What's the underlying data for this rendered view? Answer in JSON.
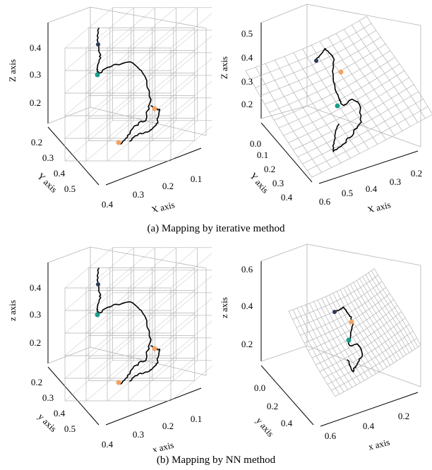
{
  "figure": {
    "caption_a": "(a) Mapping by iterative method",
    "caption_b": "(b) Mapping by NN method"
  },
  "panels": [
    {
      "id": "a-left",
      "zlabel": "Z axis",
      "ylabel": "Y axis",
      "xlabel": "X axis",
      "zticks": [
        "0.4",
        "0.3",
        "0.2"
      ],
      "yticks": [
        "0.2",
        "0.3",
        "0.4",
        "0.5"
      ],
      "xticks": [
        "0.4",
        "0.3",
        "0.2",
        "0.1"
      ],
      "grid_shape": "box",
      "colors": {
        "grid": "#b3b3b3",
        "trajectory": "#000000",
        "start": "#1a9e8a",
        "end": "#f4a261",
        "top": "#2b3a55"
      }
    },
    {
      "id": "a-right",
      "zlabel": "Z axis",
      "ylabel": "Y axis",
      "xlabel": "X axis",
      "zticks": [
        "0.5",
        "0.4",
        "0.3",
        "0.2"
      ],
      "yticks": [
        "0.0",
        "0.1",
        "0.2",
        "0.3",
        "0.4"
      ],
      "xticks": [
        "0.6",
        "0.5",
        "0.4",
        "0.3",
        "0.2"
      ],
      "grid_shape": "warped",
      "colors": {
        "grid": "#b3b3b3",
        "trajectory": "#000000",
        "start": "#1a9e8a",
        "end": "#f4a261",
        "top": "#2b3a55"
      }
    },
    {
      "id": "b-left",
      "zlabel": "z axis",
      "ylabel": "y axis",
      "xlabel": "x axis",
      "zticks": [
        "0.4",
        "0.3",
        "0.2"
      ],
      "yticks": [
        "0.2",
        "0.3",
        "0.4",
        "0.5"
      ],
      "xticks": [
        "0.4",
        "0.3",
        "0.2",
        "0.1"
      ],
      "grid_shape": "box",
      "colors": {
        "grid": "#b3b3b3",
        "trajectory": "#000000",
        "start": "#1a9e8a",
        "end": "#f4a261",
        "top": "#2b3a55"
      }
    },
    {
      "id": "b-right",
      "zlabel": "z axis",
      "ylabel": "y axis",
      "xlabel": "x axis",
      "zticks": [
        "0.6",
        "0.4",
        "0.2"
      ],
      "yticks": [
        "0.0",
        "0.2",
        "0.4"
      ],
      "xticks": [
        "0.6",
        "0.4",
        "0.2"
      ],
      "grid_shape": "warped-small",
      "colors": {
        "grid": "#b3b3b3",
        "trajectory": "#000000",
        "start": "#1a9e8a",
        "end": "#f4a261",
        "top": "#2b3a55"
      }
    }
  ]
}
